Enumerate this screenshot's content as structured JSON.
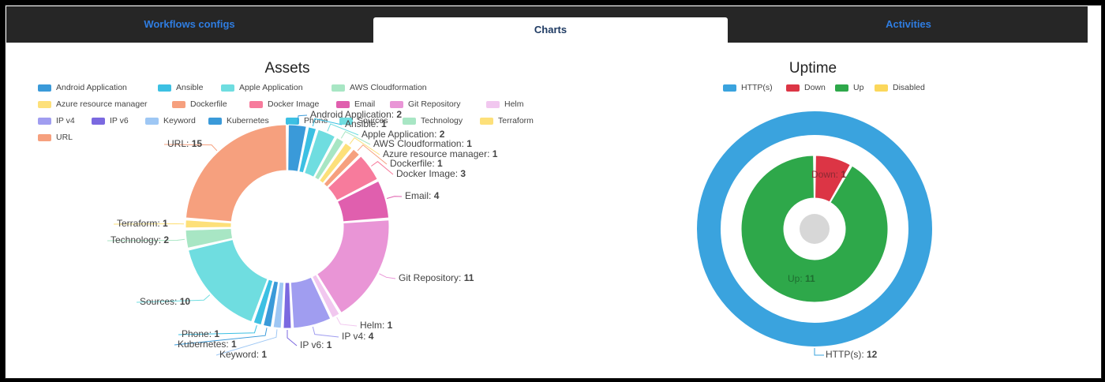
{
  "tabs": [
    {
      "label": "Workflows configs"
    },
    {
      "label": "Charts"
    },
    {
      "label": "Activities"
    }
  ],
  "chart_data": [
    {
      "type": "pie",
      "title": "Assets",
      "donut": true,
      "legend_position": "top",
      "categories": [
        "Android Application",
        "Ansible",
        "Apple Application",
        "AWS Cloudformation",
        "Azure resource manager",
        "Dockerfile",
        "Docker Image",
        "Email",
        "Git Repository",
        "Helm",
        "IP v4",
        "IP v6",
        "Keyword",
        "Kubernetes",
        "Phone",
        "Sources",
        "Technology",
        "Terraform",
        "URL"
      ],
      "values": [
        2,
        1,
        2,
        1,
        1,
        1,
        3,
        4,
        11,
        1,
        4,
        1,
        1,
        1,
        1,
        10,
        2,
        1,
        15
      ],
      "colors": [
        "#3a9ad9",
        "#3cc0e3",
        "#6fdde0",
        "#a8e6c4",
        "#fde07a",
        "#f6a07e",
        "#f77b9c",
        "#e05fae",
        "#e995d6",
        "#f1c7ef",
        "#a09df0",
        "#7b69e0",
        "#9ec7f4",
        "#3a9ad9",
        "#3cc0e3",
        "#6fdde0",
        "#a8e6c4",
        "#fde07a",
        "#f6a07e"
      ]
    },
    {
      "type": "pie",
      "title": "Uptime",
      "donut": true,
      "legend_position": "top",
      "categories": [
        "HTTP(s)",
        "Down",
        "Up",
        "Disabled"
      ],
      "colors": [
        "#3aa3de",
        "#dc3545",
        "#2ea84a",
        "#fbd75b"
      ],
      "outer_ring": {
        "name": "HTTP(s)",
        "value": 12
      },
      "inner_ring": [
        {
          "name": "Down",
          "value": 1
        },
        {
          "name": "Up",
          "value": 11
        }
      ]
    }
  ]
}
